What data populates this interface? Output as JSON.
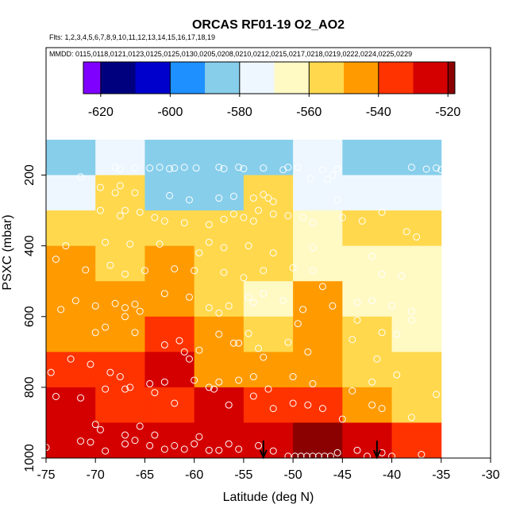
{
  "chart_data": {
    "type": "heatmap",
    "title": "ORCAS RF01-19 O2_AO2",
    "flights_label": "Flts: 1,2,3,4,5,6,7,8,9,10,11,12,13,14,15,16,17,18,19",
    "dates_label": "MMDD: 0115,0118,0121,0123,0125,0125,0130,0205,0208,0210,0212,0215,0217,0218,0219,0222,0224,0225,0229",
    "xlabel": "Latitude (deg N)",
    "ylabel": "PSXC (mbar)",
    "xlim": [
      -75,
      -30
    ],
    "ylim": [
      1000,
      100
    ],
    "x_ticks": [
      -75,
      -70,
      -65,
      -60,
      -55,
      -50,
      -45,
      -40,
      -35,
      -30
    ],
    "y_ticks": [
      200,
      400,
      600,
      800,
      1000
    ],
    "colorbar": {
      "min": -625,
      "max": -518,
      "ticks": [
        -620,
        -600,
        -580,
        -560,
        -540,
        -520
      ],
      "segment_edges": [
        -625,
        -620,
        -610,
        -600,
        -590,
        -580,
        -570,
        -560,
        -550,
        -540,
        -530,
        -520,
        -518
      ],
      "colors": [
        "#7f00ff",
        "#00007f",
        "#0000cd",
        "#1e90ff",
        "#87ceeb",
        "#eef7ff",
        "#fff9c4",
        "#ffd84d",
        "#ff9b00",
        "#ff3300",
        "#d40000",
        "#8b0000"
      ]
    },
    "x_edges": [
      -75,
      -70,
      -65,
      -60,
      -55,
      -50,
      -45,
      -40,
      -35
    ],
    "y_edges": [
      100,
      200,
      300,
      400,
      500,
      600,
      700,
      800,
      900,
      1000
    ],
    "cells": [
      [
        -583,
        -580,
        -581,
        -583,
        -582,
        -578,
        -585,
        -588
      ],
      [
        -571,
        -560,
        -590,
        -585,
        -560,
        -575,
        -578,
        -579
      ],
      [
        -558,
        -555,
        -556,
        -555,
        -555,
        -562,
        -560,
        -553
      ],
      [
        -550,
        -552,
        -545,
        -555,
        -558,
        -562,
        -565,
        -566
      ],
      [
        -548,
        -550,
        -548,
        -553,
        -562,
        -549,
        -565,
        -568
      ],
      [
        -543,
        -546,
        -538,
        -546,
        -551,
        -543,
        -555,
        -567
      ],
      [
        -538,
        -540,
        -528,
        -543,
        -546,
        -541,
        -553,
        -557
      ],
      [
        -530,
        -532,
        -532,
        -526,
        -540,
        -537,
        -541,
        -551
      ],
      [
        -528,
        -522,
        -528,
        -530,
        -530,
        -519,
        -528,
        -535
      ]
    ],
    "points": [
      [
        -71.5,
        205
      ],
      [
        -68,
        178
      ],
      [
        -67.5,
        183
      ],
      [
        -66,
        180
      ],
      [
        -64.5,
        180
      ],
      [
        -63.5,
        178
      ],
      [
        -62.5,
        182
      ],
      [
        -62,
        180
      ],
      [
        -61,
        178
      ],
      [
        -59.8,
        180
      ],
      [
        -57.5,
        178
      ],
      [
        -57,
        182
      ],
      [
        -55.5,
        178
      ],
      [
        -55,
        182
      ],
      [
        -53,
        180
      ],
      [
        -51,
        185
      ],
      [
        -50.5,
        178
      ],
      [
        -49.5,
        178
      ],
      [
        -47,
        185
      ],
      [
        -45.5,
        183
      ],
      [
        -38,
        178
      ],
      [
        -36.5,
        183
      ],
      [
        -35.5,
        180
      ],
      [
        -35,
        185
      ],
      [
        -46,
        200
      ],
      [
        -46.5,
        212
      ],
      [
        -48.2,
        210
      ],
      [
        -67.5,
        230
      ],
      [
        -69.5,
        235
      ],
      [
        -68,
        250
      ],
      [
        -66,
        250
      ],
      [
        -62.5,
        258
      ],
      [
        -60.5,
        270
      ],
      [
        -57.5,
        265
      ],
      [
        -56,
        260
      ],
      [
        -54,
        265
      ],
      [
        -53,
        255
      ],
      [
        -52.5,
        265
      ],
      [
        -52,
        275
      ],
      [
        -45.5,
        270
      ],
      [
        -69.5,
        300
      ],
      [
        -67.5,
        315
      ],
      [
        -67,
        300
      ],
      [
        -65.5,
        305
      ],
      [
        -64,
        320
      ],
      [
        -63,
        330
      ],
      [
        -61,
        335
      ],
      [
        -58.5,
        340
      ],
      [
        -57,
        325
      ],
      [
        -56,
        310
      ],
      [
        -55,
        320
      ],
      [
        -54,
        330
      ],
      [
        -53.5,
        300
      ],
      [
        -52,
        310
      ],
      [
        -50.5,
        315
      ],
      [
        -49,
        320
      ],
      [
        -48,
        335
      ],
      [
        -45,
        320
      ],
      [
        -43,
        330
      ],
      [
        -41,
        305
      ],
      [
        -38.5,
        360
      ],
      [
        -37.5,
        375
      ],
      [
        -73,
        400
      ],
      [
        -69,
        390
      ],
      [
        -66.5,
        395
      ],
      [
        -63.5,
        395
      ],
      [
        -59.5,
        420
      ],
      [
        -58.5,
        390
      ],
      [
        -57,
        405
      ],
      [
        -54.5,
        400
      ],
      [
        -52,
        420
      ],
      [
        -48,
        405
      ],
      [
        -42,
        430
      ],
      [
        -74,
        438
      ],
      [
        -71,
        468
      ],
      [
        -68.5,
        455
      ],
      [
        -67,
        480
      ],
      [
        -65,
        470
      ],
      [
        -62,
        465
      ],
      [
        -60,
        470
      ],
      [
        -57,
        475
      ],
      [
        -55,
        490
      ],
      [
        -53,
        470
      ],
      [
        -50,
        462
      ],
      [
        -48,
        470
      ],
      [
        -41,
        480
      ],
      [
        -39,
        485
      ],
      [
        -72,
        555
      ],
      [
        -73.5,
        580
      ],
      [
        -70,
        570
      ],
      [
        -68,
        563
      ],
      [
        -67,
        575
      ],
      [
        -66,
        565
      ],
      [
        -65.5,
        585
      ],
      [
        -63,
        535
      ],
      [
        -60.5,
        545
      ],
      [
        -58.5,
        575
      ],
      [
        -57.5,
        590
      ],
      [
        -56.5,
        570
      ],
      [
        -54.5,
        545
      ],
      [
        -54,
        560
      ],
      [
        -53,
        535
      ],
      [
        -51,
        555
      ],
      [
        -49,
        580
      ],
      [
        -47,
        515
      ],
      [
        -46,
        570
      ],
      [
        -43.5,
        560
      ],
      [
        -42,
        555
      ],
      [
        -40,
        570
      ],
      [
        -38,
        585
      ],
      [
        -70,
        645
      ],
      [
        -69,
        630
      ],
      [
        -67,
        600
      ],
      [
        -66,
        645
      ],
      [
        -63,
        680
      ],
      [
        -61.5,
        668
      ],
      [
        -61,
        700
      ],
      [
        -60.5,
        720
      ],
      [
        -59.5,
        695
      ],
      [
        -57.5,
        650
      ],
      [
        -56,
        675
      ],
      [
        -55.5,
        675
      ],
      [
        -54.5,
        648
      ],
      [
        -53.5,
        690
      ],
      [
        -53,
        715
      ],
      [
        -50.5,
        673
      ],
      [
        -49.5,
        620
      ],
      [
        -48.5,
        700
      ],
      [
        -44,
        665
      ],
      [
        -43.5,
        610
      ],
      [
        -41,
        645
      ],
      [
        -39.5,
        650
      ],
      [
        -38,
        610
      ],
      [
        -74.5,
        758
      ],
      [
        -72.5,
        720
      ],
      [
        -70.5,
        735
      ],
      [
        -68.5,
        758
      ],
      [
        -67.5,
        770
      ],
      [
        -66.5,
        800
      ],
      [
        -64.5,
        790
      ],
      [
        -63,
        785
      ],
      [
        -60,
        780
      ],
      [
        -58.5,
        800
      ],
      [
        -57.5,
        785
      ],
      [
        -55.5,
        780
      ],
      [
        -54,
        770
      ],
      [
        -52.5,
        805
      ],
      [
        -50,
        770
      ],
      [
        -48,
        790
      ],
      [
        -44,
        810
      ],
      [
        -42,
        785
      ],
      [
        -41.5,
        720
      ],
      [
        -39.5,
        765
      ],
      [
        -35.5,
        820
      ],
      [
        -74,
        826
      ],
      [
        -71.5,
        830
      ],
      [
        -69,
        805
      ],
      [
        -67,
        805
      ],
      [
        -64,
        815
      ],
      [
        -62,
        845
      ],
      [
        -58,
        805
      ],
      [
        -56.5,
        850
      ],
      [
        -54,
        825
      ],
      [
        -52,
        860
      ],
      [
        -50,
        845
      ],
      [
        -48.5,
        850
      ],
      [
        -47,
        860
      ],
      [
        -45,
        890
      ],
      [
        -42,
        850
      ],
      [
        -41,
        860
      ],
      [
        -38,
        885
      ],
      [
        -75,
        970
      ],
      [
        -71.5,
        952
      ],
      [
        -70.5,
        955
      ],
      [
        -69,
        980
      ],
      [
        -67,
        960
      ],
      [
        -66,
        950
      ],
      [
        -64.5,
        965
      ],
      [
        -63,
        975
      ],
      [
        -62,
        965
      ],
      [
        -61,
        975
      ],
      [
        -60,
        960
      ],
      [
        -59.5,
        940
      ],
      [
        -58.5,
        978
      ],
      [
        -57.5,
        978
      ],
      [
        -56.5,
        960
      ],
      [
        -55.5,
        975
      ],
      [
        -53.5,
        965
      ],
      [
        -52,
        980
      ],
      [
        -50.5,
        995
      ],
      [
        -49.8,
        995
      ],
      [
        -49.2,
        995
      ],
      [
        -48.6,
        995
      ],
      [
        -48,
        995
      ],
      [
        -47.4,
        995
      ],
      [
        -46.8,
        995
      ],
      [
        -46.2,
        995
      ],
      [
        -45.5,
        985
      ],
      [
        -43.5,
        978
      ],
      [
        -42.5,
        995
      ],
      [
        -41,
        985
      ],
      [
        -40,
        995
      ],
      [
        -37,
        990
      ],
      [
        -70,
        905
      ],
      [
        -69.5,
        920
      ],
      [
        -67,
        935
      ],
      [
        -65.5,
        910
      ],
      [
        -64,
        935
      ]
    ],
    "arrows": [
      -53,
      -41.5
    ]
  }
}
